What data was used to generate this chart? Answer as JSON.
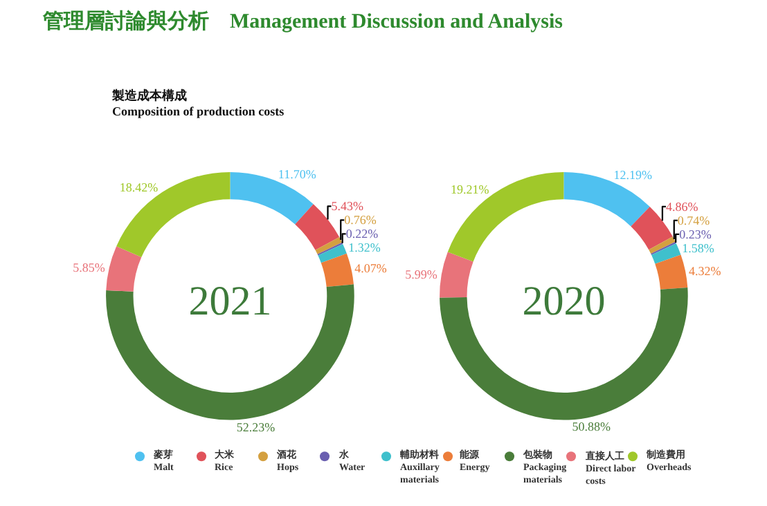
{
  "chart_data": [
    {
      "type": "donut",
      "title": "2021",
      "annotations": [
        "管理層討論與分析　Management Discussion and Analysis",
        "製造成本構成\nComposition of production costs"
      ],
      "categories": [
        "麥芽\nMalt",
        "大米\nRice",
        "酒花\nHops",
        "水\nWater",
        "輔助材料\nAuxillary\nmaterials",
        "能源\nEnergy",
        "包裝物\nPackaging\nmaterials",
        "直接人工\nDirect labor\ncosts",
        "制造費用\nOverheads"
      ],
      "values": [
        11.7,
        5.43,
        0.76,
        0.22,
        1.32,
        4.07,
        52.23,
        5.85,
        18.42
      ],
      "value_labels": [
        "11.70%",
        "5.43%",
        "0.76%",
        "0.22%",
        "1.32%",
        "4.07%",
        "52.23%",
        "5.85%",
        "18.42%"
      ],
      "colors": [
        "#4fc1f0",
        "#e0525a",
        "#d4a040",
        "#6a5fb0",
        "#3fc0cc",
        "#ec7d3a",
        "#4a7d3a",
        "#e8737a",
        "#a0c82a"
      ],
      "legend": "bottom"
    },
    {
      "type": "donut",
      "title": "2020",
      "categories": [
        null,
        null,
        null,
        null,
        null,
        null,
        null,
        null,
        null
      ],
      "values": [
        12.19,
        4.86,
        0.74,
        0.23,
        1.58,
        4.32,
        50.88,
        5.99,
        19.21
      ],
      "value_labels": [
        "12.19%",
        "4.86%",
        "0.74%",
        "0.23%",
        "1.58%",
        "4.32%",
        "50.88%",
        "5.99%",
        "19.21%"
      ],
      "colors": [
        "#4fc1f0",
        "#e0525a",
        "#d4a040",
        "#6a5fb0",
        "#3fc0cc",
        "#ec7d3a",
        "#4a7d3a",
        "#e8737a",
        "#a0c82a"
      ],
      "legend": false
    }
  ]
}
